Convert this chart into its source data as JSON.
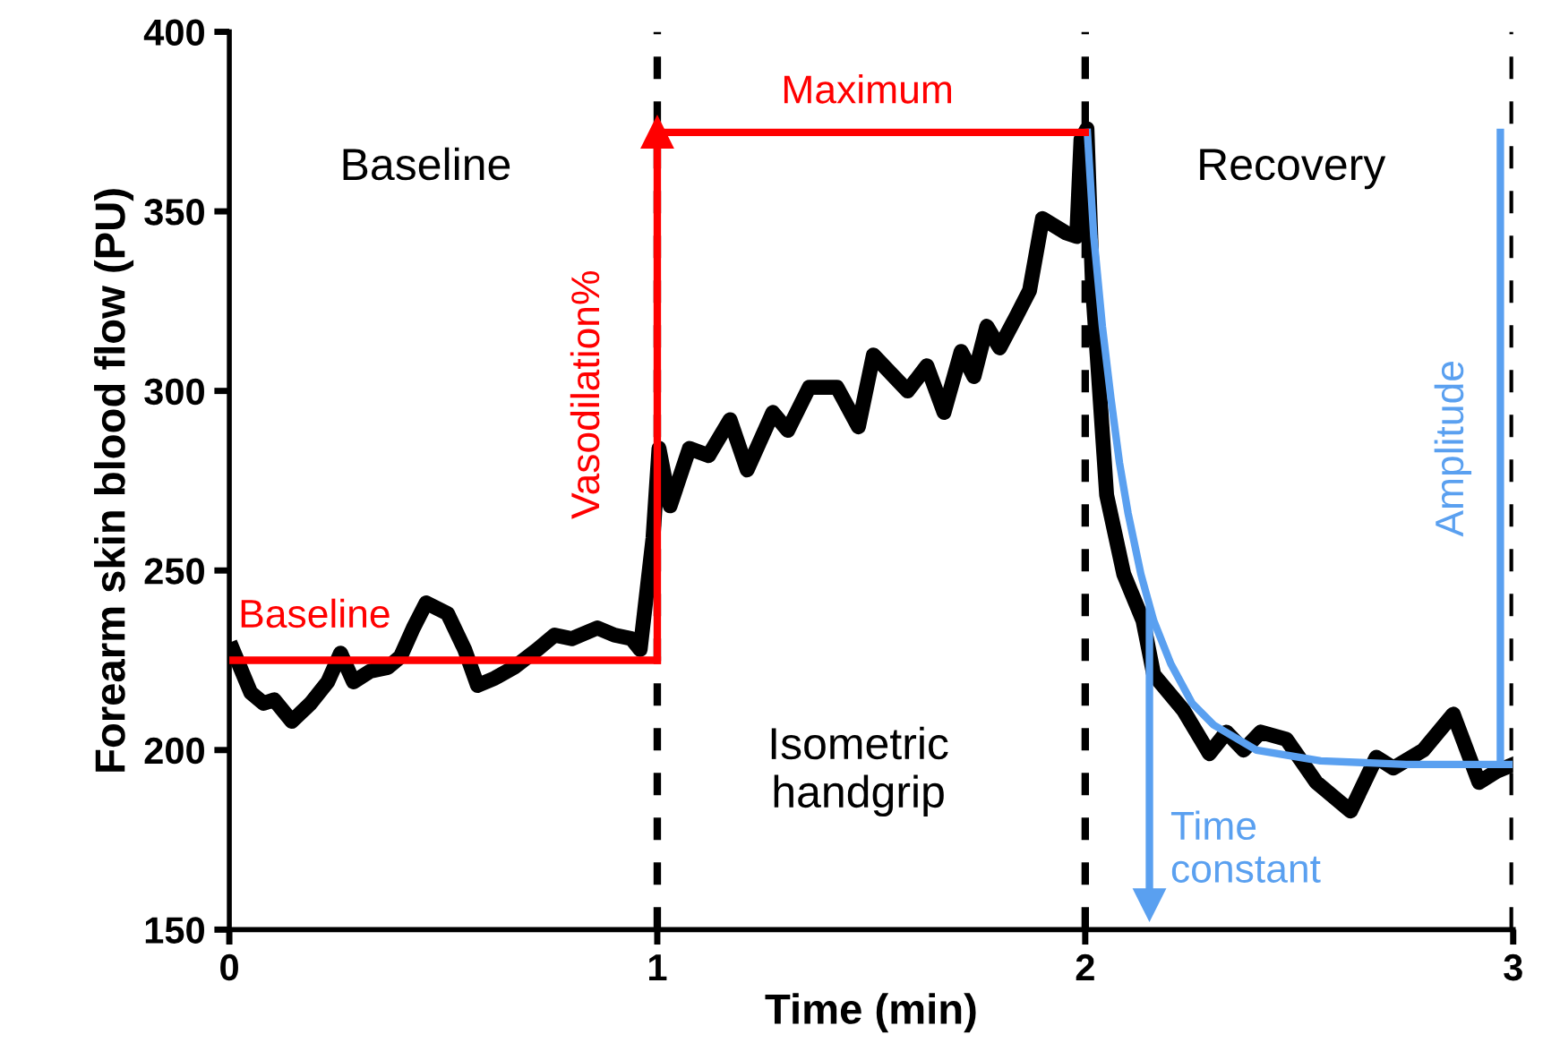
{
  "chart_data": {
    "type": "line",
    "xlabel": "Time (min)",
    "ylabel": "Forearm skin blood flow (PU)",
    "xlim": [
      0,
      3
    ],
    "ylim": [
      150,
      400
    ],
    "xticks": [
      0,
      1,
      2,
      3
    ],
    "yticks": [
      150,
      200,
      250,
      300,
      350,
      400
    ],
    "grid": false,
    "legend": false,
    "series": [
      {
        "color": "#000000",
        "x": [
          0.008,
          0.05,
          0.08,
          0.105,
          0.146,
          0.19,
          0.23,
          0.26,
          0.29,
          0.33,
          0.37,
          0.4,
          0.43,
          0.46,
          0.51,
          0.55,
          0.58,
          0.62,
          0.665,
          0.72,
          0.76,
          0.8,
          0.86,
          0.9,
          0.94,
          0.96,
          0.99,
          1.004,
          1.03,
          1.075,
          1.12,
          1.17,
          1.21,
          1.27,
          1.305,
          1.355,
          1.42,
          1.47,
          1.505,
          1.585,
          1.63,
          1.67,
          1.71,
          1.74,
          1.77,
          1.8,
          1.84,
          1.87,
          1.9,
          1.955,
          1.98,
          1.99,
          2.004,
          2.017,
          2.05,
          2.09,
          2.135,
          2.16,
          2.23,
          2.29,
          2.33,
          2.37,
          2.41,
          2.47,
          2.54,
          2.62,
          2.68,
          2.72,
          2.79,
          2.86,
          2.92,
          2.96,
          3.0
        ],
        "values": [
          228,
          216,
          213,
          214,
          208,
          213,
          219,
          227,
          219,
          222,
          223,
          226,
          234,
          241,
          238,
          228,
          218,
          220,
          223,
          228,
          232,
          231,
          234,
          232,
          231,
          228,
          259,
          284,
          268,
          284,
          282,
          292,
          278,
          294,
          289,
          301,
          301,
          290,
          310,
          300,
          307,
          294,
          311,
          304,
          318,
          312,
          321,
          328,
          348,
          344,
          343,
          370,
          373,
          329,
          271,
          249,
          236,
          221,
          211,
          199,
          205,
          200,
          205,
          203,
          191,
          183,
          198,
          195,
          200,
          210,
          191,
          194,
          196
        ]
      },
      {
        "color": "#5aa0f0",
        "x": [
          2.005,
          2.02,
          2.04,
          2.06,
          2.08,
          2.1,
          2.13,
          2.16,
          2.2,
          2.25,
          2.3,
          2.4,
          2.55,
          2.75,
          2.99
        ],
        "values": [
          372,
          343,
          318,
          298,
          280,
          266,
          249,
          236,
          224,
          213,
          207,
          200,
          197,
          196,
          196
        ]
      },
      {
        "color": "#ff0000",
        "x": [
          0,
          1
        ],
        "values": [
          225,
          225
        ]
      },
      {
        "color": "#ff0000",
        "x": [
          1,
          2
        ],
        "values": [
          372,
          372
        ]
      },
      {
        "color": "#ff0000",
        "x": [
          1,
          1
        ],
        "values": [
          225,
          372
        ]
      },
      {
        "color": "#5aa0f0",
        "x": [
          2.15,
          2.15
        ],
        "values": [
          239,
          157
        ]
      },
      {
        "color": "#5aa0f0",
        "x": [
          2.97,
          2.97
        ],
        "values": [
          372,
          196
        ]
      }
    ],
    "ref_lines": [
      {
        "axis": "x",
        "value": 1,
        "color": "#000000",
        "line_style": "dashed"
      },
      {
        "axis": "x",
        "value": 2,
        "color": "#000000",
        "line_style": "dashed"
      },
      {
        "axis": "x",
        "value": 3,
        "color": "#000000",
        "line_style": "dashed"
      }
    ],
    "annotations": [
      "Baseline",
      "Isometric\nhandgrip",
      "Recovery",
      "Baseline",
      "Maximum",
      "Vasodilation%",
      "Time\nconstant",
      "Amplitude"
    ]
  }
}
